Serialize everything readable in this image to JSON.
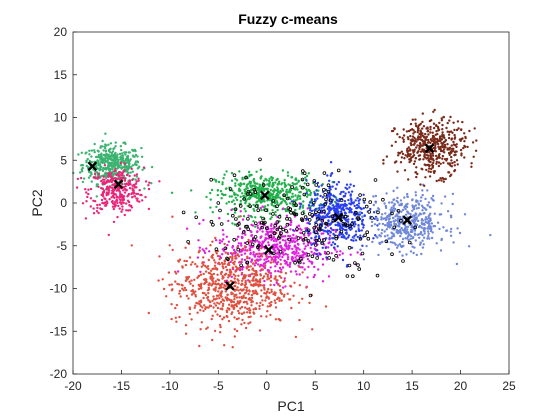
{
  "chart_data": {
    "type": "scatter",
    "title": "Fuzzy c-means",
    "xlabel": "PC1",
    "ylabel": "PC2",
    "xlim": [
      -20,
      25
    ],
    "ylim": [
      -20,
      20
    ],
    "xticks": [
      -20,
      -15,
      -10,
      -5,
      0,
      5,
      10,
      15,
      20,
      25
    ],
    "yticks": [
      -20,
      -15,
      -10,
      -5,
      0,
      5,
      10,
      15,
      20
    ],
    "grid": false,
    "legend": "none",
    "series": [
      {
        "color": "#3cb371",
        "center": [
          -16,
          4.5
        ],
        "spread": [
          1.5,
          1.1
        ],
        "count": 420
      },
      {
        "color": "#e8267a",
        "center": [
          -15.5,
          1.5
        ],
        "spread": [
          1.4,
          1.3
        ],
        "count": 320
      },
      {
        "color": "#22b14c",
        "center": [
          0,
          1.0
        ],
        "spread": [
          2.6,
          1.2
        ],
        "count": 480
      },
      {
        "color": "#e020e0",
        "center": [
          0.8,
          -5.3
        ],
        "spread": [
          3.0,
          1.8
        ],
        "count": 560
      },
      {
        "color": "#e05040",
        "center": [
          -3.8,
          -9.8
        ],
        "spread": [
          3.0,
          2.3
        ],
        "count": 680
      },
      {
        "color": "#2a3ff0",
        "center": [
          7.3,
          -1.5
        ],
        "spread": [
          1.6,
          1.9
        ],
        "count": 440
      },
      {
        "color": "#7088d8",
        "center": [
          14.5,
          -2.3
        ],
        "spread": [
          2.0,
          1.6
        ],
        "count": 440
      },
      {
        "color": "#7a2a1a",
        "center": [
          17.0,
          6.5
        ],
        "spread": [
          1.8,
          1.6
        ],
        "count": 460
      },
      {
        "color": "#000000",
        "center": [
          3.5,
          -2.0
        ],
        "spread": [
          5.0,
          3.0
        ],
        "count": 200,
        "hollow": true
      }
    ],
    "centroids": [
      [
        -18.0,
        4.3
      ],
      [
        -15.3,
        2.2
      ],
      [
        -0.2,
        0.9
      ],
      [
        0.2,
        -5.5
      ],
      [
        -3.8,
        -9.7
      ],
      [
        7.4,
        -1.7
      ],
      [
        14.5,
        -2.0
      ],
      [
        16.8,
        6.4
      ]
    ],
    "centroid_color": "#000000"
  }
}
